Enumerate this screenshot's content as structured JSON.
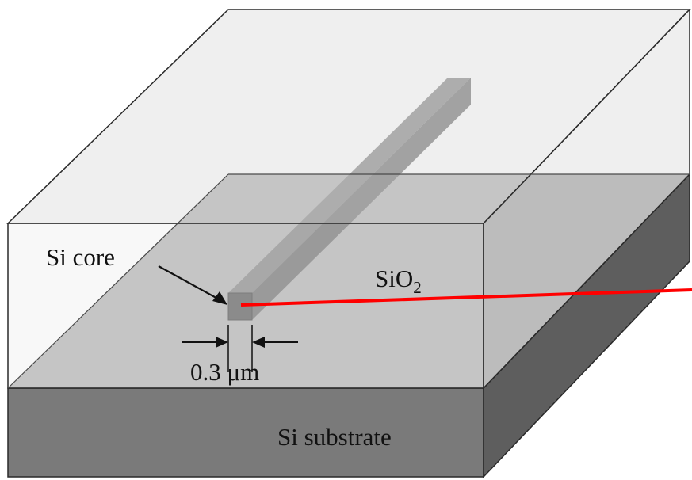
{
  "labels": {
    "core": "Si core",
    "cladding_main": "SiO",
    "cladding_sub": "2",
    "width_value": "0.3",
    "width_unit": "μm",
    "substrate": "Si substrate"
  },
  "colors": {
    "cladding_top": "#e2e2e2",
    "cladding_front": "#f0f0f0",
    "cladding_right": "#dcdcdc",
    "substrate_top": "#a3a3a3",
    "substrate_front": "#7a7a7a",
    "substrate_right": "#5e5e5e",
    "core_top": "#6e6e6e",
    "core_side": "#555555",
    "core_front": "#3a3a3a",
    "outline": "#2a2a2a",
    "highlight_line": "#ff0000"
  }
}
